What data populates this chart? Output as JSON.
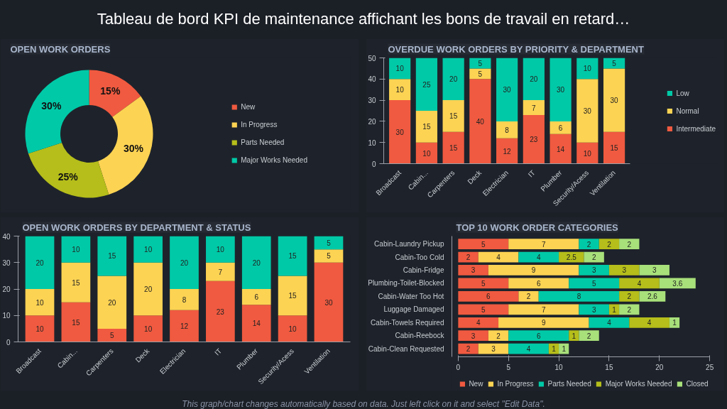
{
  "chart_data": [
    {
      "type": "other",
      "title": "Tableau de bord KPI de maintenance affichant les bons de travail en retard…",
      "annotations": [
        "This graph/chart changes automatically based on data. Just left click on it and select \"Edit Data\"."
      ]
    },
    {
      "type": "donut",
      "title": "OPEN WORK ORDERS",
      "categories": [
        "New",
        "In Progress",
        "Parts Needed",
        "Major Works Needed"
      ],
      "values": [
        15,
        30,
        25,
        30
      ],
      "value_labels": [
        "15%",
        "30%",
        "25%",
        "30%"
      ],
      "colors": [
        "#f05a40",
        "#fdd353",
        "#b5be1a",
        "#00c9a7"
      ],
      "legend": "right"
    },
    {
      "type": "bar",
      "title": "OVERDUE WORK ORDERS BY PRIORITY & DEPARTMENT",
      "stacked": true,
      "data_labels": true,
      "legend": "right",
      "categories": [
        "Broadcast",
        "Cabin...",
        "Carpenters",
        "Deck",
        "Electrician",
        "IT",
        "Plumber",
        "Security/Acess",
        "Ventilation"
      ],
      "ylim": [
        0,
        50
      ],
      "yticks": [
        0,
        10,
        20,
        30,
        40,
        50
      ],
      "series": [
        {
          "name": "Intermediate",
          "color": "#f05a40",
          "values": [
            30,
            10,
            15,
            40,
            12,
            23,
            14,
            10,
            15
          ]
        },
        {
          "name": "Normal",
          "color": "#fdd353",
          "values": [
            10,
            15,
            15,
            5,
            8,
            7,
            6,
            30,
            30
          ]
        },
        {
          "name": "Low",
          "color": "#00c9a7",
          "values": [
            10,
            25,
            20,
            5,
            30,
            20,
            30,
            10,
            5
          ]
        }
      ]
    },
    {
      "type": "bar",
      "title": "OPEN WORK ORDERS BY DEPARTMENT & STATUS",
      "stacked": true,
      "data_labels": true,
      "categories": [
        "Broadcast",
        "Cabin...",
        "Carpenters",
        "Deck",
        "Electrician",
        "IT",
        "Plumber",
        "Security/Acess",
        "Ventilation"
      ],
      "ylim": [
        0,
        40
      ],
      "yticks": [
        0,
        10,
        20,
        30,
        40
      ],
      "series": [
        {
          "color": "#f05a40",
          "values": [
            10,
            15,
            5,
            10,
            12,
            23,
            14,
            10,
            30
          ]
        },
        {
          "color": "#fdd353",
          "values": [
            10,
            15,
            20,
            20,
            8,
            7,
            6,
            15,
            5
          ]
        },
        {
          "color": "#00c9a7",
          "values": [
            20,
            10,
            15,
            10,
            20,
            10,
            20,
            15,
            5
          ]
        }
      ]
    },
    {
      "type": "bar",
      "title": "TOP 10 WORK ORDER CATEGORIES",
      "stacked": true,
      "orientation": "horizontal",
      "data_labels": true,
      "legend": "bottom",
      "categories": [
        "Cabin-Laundry Pickup",
        "Cabin-Too Cold",
        "Cabin-Fridge",
        "Plumbing-Toilet-Blocked",
        "Cabin-Water Too Hot",
        "Luggage Damaged",
        "Cabin-Towels Required",
        "Cabin-Reebock",
        "Cabin-Clean Requested"
      ],
      "xlim": [
        0,
        25
      ],
      "xticks": [
        0,
        5,
        10,
        15,
        20,
        25
      ],
      "series": [
        {
          "name": "New",
          "color": "#f05a40",
          "values": [
            5,
            2,
            3,
            5,
            6,
            5,
            4,
            3,
            2
          ]
        },
        {
          "name": "In Progress",
          "color": "#fdd353",
          "values": [
            7,
            4,
            9,
            6,
            2,
            7,
            9,
            2,
            3
          ]
        },
        {
          "name": "Parts Needed",
          "color": "#00c9a7",
          "values": [
            2,
            4,
            3,
            5,
            8,
            3,
            4,
            6,
            4
          ]
        },
        {
          "name": "Major Works Needed",
          "color": "#b5be1a",
          "values": [
            2,
            2.5,
            3,
            4,
            2,
            1,
            4,
            1,
            1
          ]
        },
        {
          "name": "Closed",
          "color": "#a8e07a",
          "values": [
            2,
            2,
            3,
            3.6,
            2.6,
            2,
            1,
            2,
            1
          ]
        }
      ]
    }
  ]
}
